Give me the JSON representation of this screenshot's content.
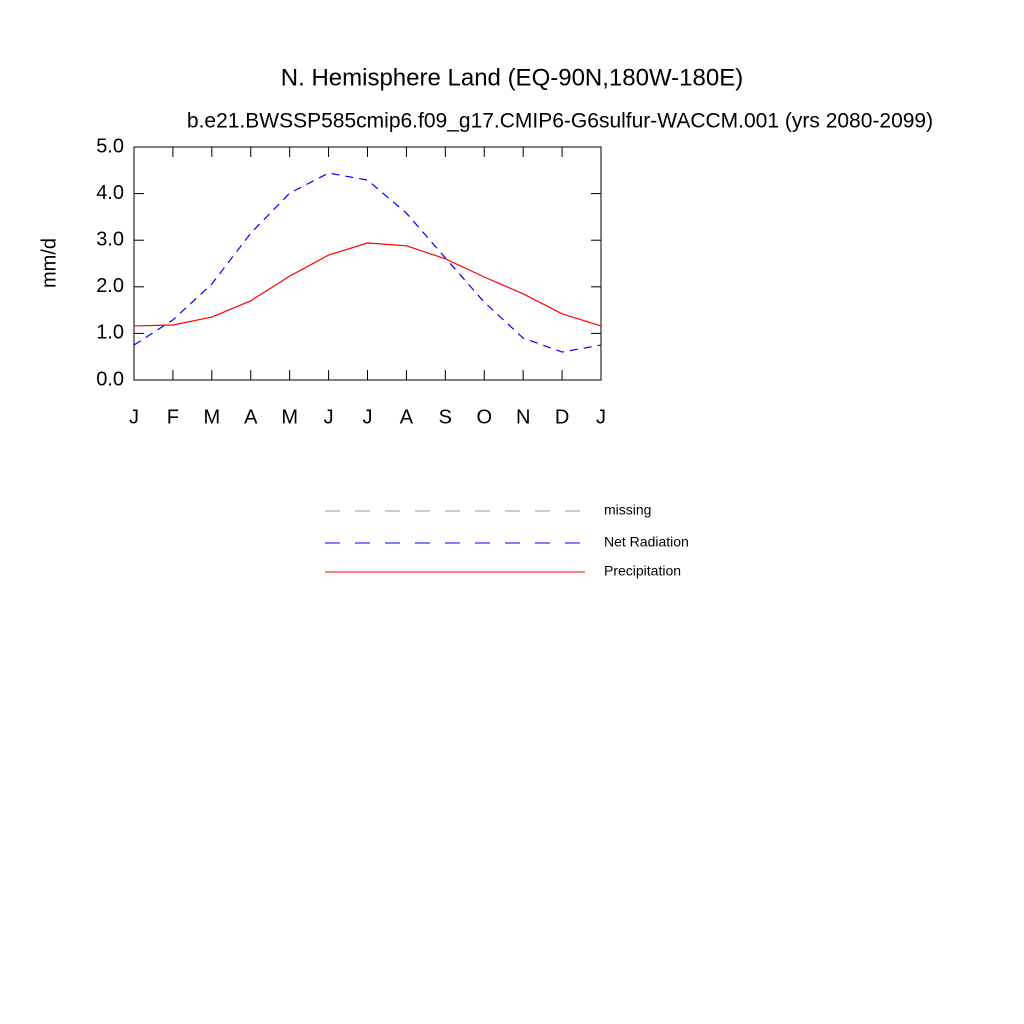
{
  "chart_data": {
    "type": "line",
    "title": "N. Hemisphere Land (EQ-90N,180W-180E)",
    "subtitle": "b.e21.BWSSP585cmip6.f09_g17.CMIP6-G6sulfur-WACCM.001 (yrs 2080-2099)",
    "y_label": "mm/d",
    "categories": [
      "J",
      "F",
      "M",
      "A",
      "M",
      "J",
      "J",
      "A",
      "S",
      "O",
      "N",
      "D",
      "J"
    ],
    "ylim": [
      0,
      5
    ],
    "yticks": [
      {
        "value": 0,
        "label": "0.0"
      },
      {
        "value": 1,
        "label": "1.0"
      },
      {
        "value": 2,
        "label": "2.0"
      },
      {
        "value": 3,
        "label": "3.0"
      },
      {
        "value": 4,
        "label": "4.0"
      },
      {
        "value": 5,
        "label": "5.0"
      }
    ],
    "series": [
      {
        "name": "missing",
        "color": "#999999",
        "dash": true,
        "values": [
          null,
          null,
          null,
          null,
          null,
          null,
          null,
          null,
          null,
          null,
          null,
          null,
          null
        ]
      },
      {
        "name": "Net Radiation",
        "color": "#0000ff",
        "dash": true,
        "values": [
          0.75,
          1.29,
          2.06,
          3.15,
          4.01,
          4.44,
          4.29,
          3.58,
          2.62,
          1.67,
          0.9,
          0.6,
          0.75
        ]
      },
      {
        "name": "Precipitation",
        "color": "#ff0000",
        "dash": false,
        "values": [
          1.16,
          1.18,
          1.35,
          1.7,
          2.23,
          2.68,
          2.94,
          2.88,
          2.6,
          2.21,
          1.85,
          1.42,
          1.16
        ]
      }
    ]
  }
}
